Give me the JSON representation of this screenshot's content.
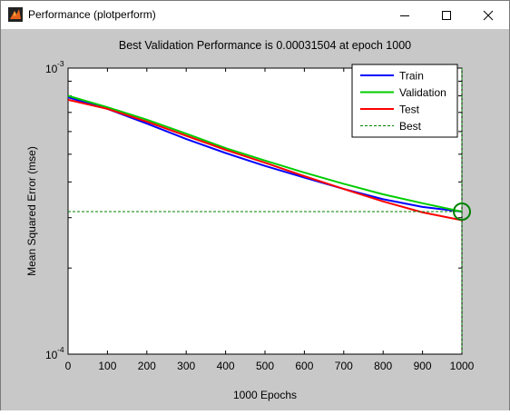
{
  "window": {
    "title": "Performance (plotperform)",
    "controls": {
      "minimize": "minimize",
      "maximize": "maximize",
      "close": "close"
    }
  },
  "plot": {
    "title": "Best Validation Performance is 0.00031504 at epoch 1000",
    "xlabel": "1000 Epochs",
    "ylabel": "Mean Squared Error  (mse)",
    "legend_entries": [
      "Train",
      "Validation",
      "Test",
      "Best"
    ]
  },
  "chart_data": {
    "type": "line",
    "title": "Best Validation Performance is 0.00031504 at epoch 1000",
    "xlabel": "1000 Epochs",
    "ylabel": "Mean Squared Error  (mse)",
    "xlim": [
      0,
      1000
    ],
    "ylim": [
      0.0001,
      0.001
    ],
    "yscale": "log",
    "xticks": [
      0,
      100,
      200,
      300,
      400,
      500,
      600,
      700,
      800,
      900,
      1000
    ],
    "yticks": [
      0.0001,
      0.001
    ],
    "ytick_base": "10",
    "ytick_exponents": [
      "-4",
      "-3"
    ],
    "grid": false,
    "legend_position": "top-right",
    "series": [
      {
        "name": "Train",
        "color": "#0000ff",
        "style": "solid",
        "x": [
          0,
          100,
          200,
          300,
          400,
          500,
          600,
          700,
          800,
          900,
          1000
        ],
        "y": [
          0.00079,
          0.00072,
          0.00064,
          0.000565,
          0.000505,
          0.000455,
          0.000414,
          0.000378,
          0.000348,
          0.000327,
          0.000315
        ]
      },
      {
        "name": "Validation",
        "color": "#00cc00",
        "style": "solid",
        "x": [
          0,
          100,
          200,
          300,
          400,
          500,
          600,
          700,
          800,
          900,
          1000
        ],
        "y": [
          0.0008,
          0.00073,
          0.00066,
          0.00059,
          0.000525,
          0.000475,
          0.000431,
          0.000394,
          0.000362,
          0.000337,
          0.000315
        ]
      },
      {
        "name": "Test",
        "color": "#ff0000",
        "style": "solid",
        "x": [
          0,
          100,
          200,
          300,
          400,
          500,
          600,
          700,
          800,
          900,
          1000
        ],
        "y": [
          0.000775,
          0.00072,
          0.00065,
          0.00058,
          0.000518,
          0.000467,
          0.000419,
          0.000378,
          0.000342,
          0.000313,
          0.000294
        ]
      },
      {
        "name": "Best",
        "color": "#008000",
        "style": "dashed",
        "hline_y": 0.00031504,
        "vline_x": 1000
      }
    ],
    "best_marker": {
      "x": 1000,
      "y": 0.00031504,
      "color": "#008000"
    }
  }
}
